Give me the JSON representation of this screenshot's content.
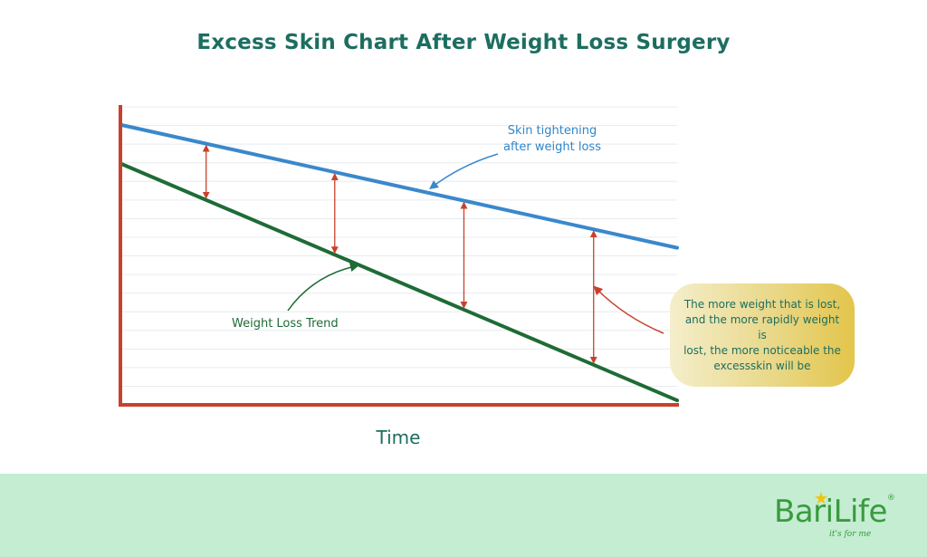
{
  "colors": {
    "title": "#1c6e60",
    "axis": "#c8412c",
    "skin_line": "#3a88cc",
    "weight_line": "#1f6b36",
    "gap_arrow": "#c8412c",
    "grid": "#e6ecef",
    "callout_gradient_start": "#f4eecb",
    "callout_gradient_end": "#e3c54b",
    "footer_bg": "#c4edd2",
    "logo": "#3a9a3e",
    "logo_star": "#f1c40f"
  },
  "chart_data": {
    "type": "line",
    "title": "Excess Skin Chart After Weight Loss Surgery",
    "xlabel": "Time",
    "ylabel": "",
    "x_range": [
      0,
      1
    ],
    "y_range": [
      0,
      1
    ],
    "grid": true,
    "tick_labels": false,
    "series": [
      {
        "name": "Skin tightening after weight loss",
        "x": [
          0,
          1
        ],
        "y": [
          0.94,
          0.527
        ]
      },
      {
        "name": "Weight Loss Trend",
        "x": [
          0,
          1
        ],
        "y": [
          0.81,
          0.015
        ]
      }
    ],
    "gap_markers_x": [
      0.154,
      0.385,
      0.617,
      0.85
    ],
    "annotations": [
      {
        "id": "skin_label",
        "text_lines": [
          "Skin tightening",
          "after weight loss"
        ]
      },
      {
        "id": "weight_label",
        "text_lines": [
          "Weight Loss Trend"
        ]
      },
      {
        "id": "callout",
        "text_lines": [
          "The more weight that is lost,",
          "and the more rapidly weight is",
          "lost, the more noticeable the",
          "excessskin will be"
        ]
      }
    ]
  },
  "logo": {
    "word": "BariLife",
    "registered": "®",
    "tagline": "it's for me"
  }
}
